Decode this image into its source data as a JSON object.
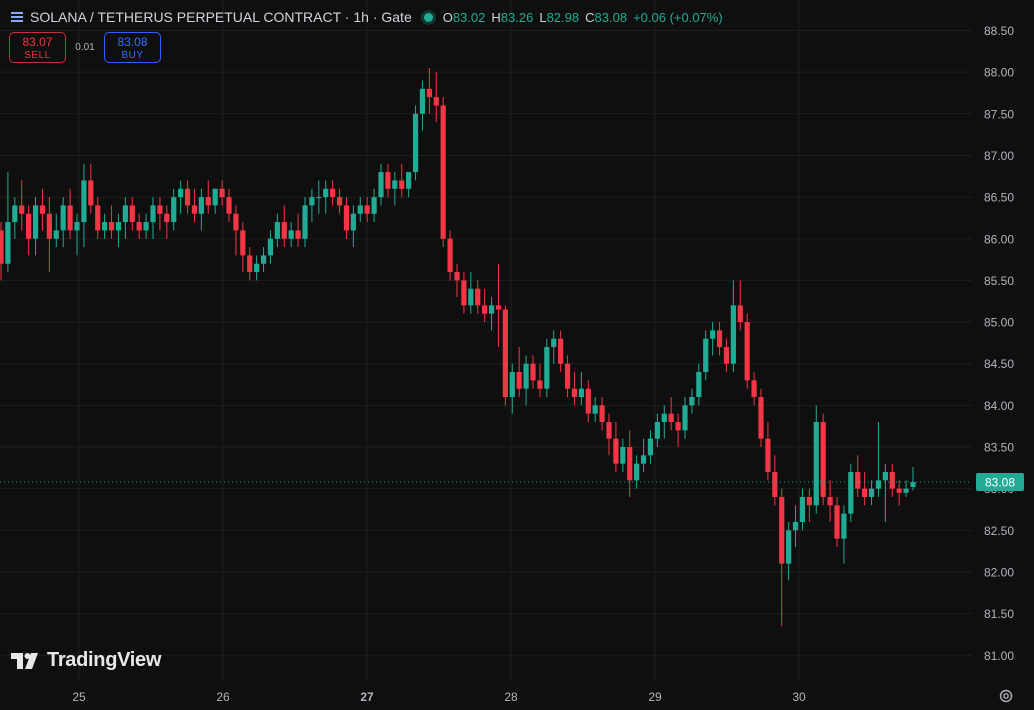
{
  "header": {
    "title": "SOLANA / TETHERUS PERPETUAL CONTRACT · 1h · Gate",
    "ohlc": [
      {
        "label": "O",
        "value": "83.02"
      },
      {
        "label": "H",
        "value": "83.26"
      },
      {
        "label": "L",
        "value": "82.98"
      },
      {
        "label": "C",
        "value": "83.08"
      }
    ],
    "change": "+0.06 (+0.07%)"
  },
  "trade": {
    "sell_price": "83.07",
    "sell_label": "SELL",
    "spread": "0.01",
    "buy_price": "83.08",
    "buy_label": "BUY"
  },
  "logo_text": "TradingView",
  "colors": {
    "up": "#22ab94",
    "down": "#f23645",
    "background": "#0f0f0f",
    "grid": "#1f1f1f"
  },
  "icons": [
    "chart-type-icon",
    "tradingview-logo-icon",
    "settings-icon"
  ],
  "chart_data": {
    "type": "candlestick",
    "interval": "1h",
    "price_axis": {
      "ylim": [
        80.75,
        88.6
      ],
      "ticks": [
        "88.50",
        "88.00",
        "87.50",
        "87.00",
        "86.50",
        "86.00",
        "85.50",
        "85.00",
        "84.50",
        "84.00",
        "83.50",
        "83.00",
        "82.50",
        "82.00",
        "81.50",
        "81.00"
      ],
      "last_price": "83.08"
    },
    "time_axis": {
      "ticks": [
        "25",
        "26",
        "27",
        "28",
        "29",
        "30"
      ],
      "bold": "27"
    },
    "grid": true,
    "candles": [
      [
        86.1,
        86.2,
        85.5,
        85.7
      ],
      [
        85.7,
        86.8,
        85.6,
        86.2
      ],
      [
        86.2,
        86.5,
        86.0,
        86.4
      ],
      [
        86.4,
        86.7,
        86.1,
        86.3
      ],
      [
        86.3,
        86.4,
        85.8,
        86.0
      ],
      [
        86.0,
        86.5,
        85.8,
        86.4
      ],
      [
        86.4,
        86.6,
        86.1,
        86.3
      ],
      [
        86.3,
        86.5,
        85.6,
        86.0
      ],
      [
        86.0,
        86.3,
        85.9,
        86.1
      ],
      [
        86.1,
        86.5,
        85.9,
        86.4
      ],
      [
        86.4,
        86.6,
        86.0,
        86.1
      ],
      [
        86.1,
        86.3,
        85.8,
        86.2
      ],
      [
        86.2,
        86.9,
        85.9,
        86.7
      ],
      [
        86.7,
        86.9,
        86.3,
        86.4
      ],
      [
        86.4,
        86.5,
        86.0,
        86.1
      ],
      [
        86.1,
        86.3,
        86.0,
        86.2
      ],
      [
        86.2,
        86.4,
        86.0,
        86.1
      ],
      [
        86.1,
        86.3,
        85.9,
        86.2
      ],
      [
        86.2,
        86.5,
        86.0,
        86.4
      ],
      [
        86.4,
        86.5,
        86.1,
        86.2
      ],
      [
        86.2,
        86.3,
        86.0,
        86.1
      ],
      [
        86.1,
        86.3,
        86.0,
        86.2
      ],
      [
        86.2,
        86.5,
        86.0,
        86.4
      ],
      [
        86.4,
        86.5,
        86.1,
        86.3
      ],
      [
        86.3,
        86.4,
        86.0,
        86.2
      ],
      [
        86.2,
        86.6,
        86.1,
        86.5
      ],
      [
        86.5,
        86.7,
        86.3,
        86.6
      ],
      [
        86.6,
        86.7,
        86.3,
        86.4
      ],
      [
        86.4,
        86.6,
        86.2,
        86.3
      ],
      [
        86.3,
        86.6,
        86.1,
        86.5
      ],
      [
        86.5,
        86.7,
        86.3,
        86.4
      ],
      [
        86.4,
        86.6,
        86.3,
        86.6
      ],
      [
        86.6,
        86.7,
        86.4,
        86.5
      ],
      [
        86.5,
        86.6,
        86.2,
        86.3
      ],
      [
        86.3,
        86.4,
        85.8,
        86.1
      ],
      [
        86.1,
        86.2,
        85.6,
        85.8
      ],
      [
        85.8,
        85.9,
        85.5,
        85.6
      ],
      [
        85.6,
        85.8,
        85.5,
        85.7
      ],
      [
        85.7,
        85.9,
        85.6,
        85.8
      ],
      [
        85.8,
        86.1,
        85.7,
        86.0
      ],
      [
        86.0,
        86.3,
        85.9,
        86.2
      ],
      [
        86.2,
        86.4,
        85.9,
        86.0
      ],
      [
        86.0,
        86.2,
        85.9,
        86.1
      ],
      [
        86.1,
        86.3,
        85.9,
        86.0
      ],
      [
        86.0,
        86.5,
        85.9,
        86.4
      ],
      [
        86.4,
        86.6,
        86.2,
        86.5
      ],
      [
        86.5,
        86.7,
        86.3,
        86.5
      ],
      [
        86.5,
        86.7,
        86.3,
        86.6
      ],
      [
        86.6,
        86.7,
        86.4,
        86.5
      ],
      [
        86.5,
        86.6,
        86.3,
        86.4
      ],
      [
        86.4,
        86.5,
        86.0,
        86.1
      ],
      [
        86.1,
        86.4,
        85.9,
        86.3
      ],
      [
        86.3,
        86.5,
        86.2,
        86.4
      ],
      [
        86.4,
        86.5,
        86.2,
        86.3
      ],
      [
        86.3,
        86.6,
        86.2,
        86.5
      ],
      [
        86.5,
        86.9,
        86.4,
        86.8
      ],
      [
        86.8,
        86.9,
        86.5,
        86.6
      ],
      [
        86.6,
        86.8,
        86.4,
        86.7
      ],
      [
        86.7,
        86.9,
        86.5,
        86.6
      ],
      [
        86.6,
        86.8,
        86.5,
        86.8
      ],
      [
        86.8,
        87.6,
        86.7,
        87.5
      ],
      [
        87.5,
        87.9,
        87.3,
        87.8
      ],
      [
        87.8,
        88.05,
        87.5,
        87.7
      ],
      [
        87.7,
        88.0,
        87.4,
        87.6
      ],
      [
        87.6,
        87.7,
        85.9,
        86.0
      ],
      [
        86.0,
        86.1,
        85.5,
        85.6
      ],
      [
        85.6,
        85.7,
        85.3,
        85.5
      ],
      [
        85.5,
        85.6,
        85.1,
        85.2
      ],
      [
        85.2,
        85.6,
        85.1,
        85.4
      ],
      [
        85.4,
        85.5,
        85.1,
        85.2
      ],
      [
        85.2,
        85.4,
        85.0,
        85.1
      ],
      [
        85.1,
        85.3,
        84.9,
        85.2
      ],
      [
        85.2,
        85.7,
        84.7,
        85.15
      ],
      [
        85.15,
        85.2,
        84.0,
        84.1
      ],
      [
        84.1,
        84.5,
        83.9,
        84.4
      ],
      [
        84.4,
        84.7,
        84.1,
        84.2
      ],
      [
        84.2,
        84.6,
        84.0,
        84.5
      ],
      [
        84.5,
        84.6,
        84.2,
        84.3
      ],
      [
        84.3,
        84.5,
        84.1,
        84.2
      ],
      [
        84.2,
        84.8,
        84.1,
        84.7
      ],
      [
        84.7,
        84.9,
        84.5,
        84.8
      ],
      [
        84.8,
        84.9,
        84.4,
        84.5
      ],
      [
        84.5,
        84.6,
        84.1,
        84.2
      ],
      [
        84.2,
        84.4,
        84.0,
        84.1
      ],
      [
        84.1,
        84.4,
        84.0,
        84.2
      ],
      [
        84.2,
        84.3,
        83.8,
        83.9
      ],
      [
        83.9,
        84.1,
        83.8,
        84.0
      ],
      [
        84.0,
        84.1,
        83.7,
        83.8
      ],
      [
        83.8,
        83.9,
        83.4,
        83.6
      ],
      [
        83.6,
        83.8,
        83.2,
        83.3
      ],
      [
        83.3,
        83.6,
        83.2,
        83.5
      ],
      [
        83.5,
        83.7,
        82.9,
        83.1
      ],
      [
        83.1,
        83.4,
        83.0,
        83.3
      ],
      [
        83.3,
        83.6,
        83.2,
        83.4
      ],
      [
        83.4,
        83.7,
        83.3,
        83.6
      ],
      [
        83.6,
        83.9,
        83.5,
        83.8
      ],
      [
        83.8,
        84.0,
        83.6,
        83.9
      ],
      [
        83.9,
        84.1,
        83.7,
        83.8
      ],
      [
        83.8,
        83.9,
        83.5,
        83.7
      ],
      [
        83.7,
        84.1,
        83.6,
        84.0
      ],
      [
        84.0,
        84.2,
        83.9,
        84.1
      ],
      [
        84.1,
        84.5,
        84.0,
        84.4
      ],
      [
        84.4,
        84.9,
        84.3,
        84.8
      ],
      [
        84.8,
        85.0,
        84.6,
        84.9
      ],
      [
        84.9,
        85.0,
        84.6,
        84.7
      ],
      [
        84.7,
        84.8,
        84.4,
        84.5
      ],
      [
        84.5,
        85.5,
        84.4,
        85.2
      ],
      [
        85.2,
        85.5,
        84.9,
        85.0
      ],
      [
        85.0,
        85.1,
        84.2,
        84.3
      ],
      [
        84.3,
        84.4,
        84.0,
        84.1
      ],
      [
        84.1,
        84.2,
        83.5,
        83.6
      ],
      [
        83.6,
        83.8,
        83.1,
        83.2
      ],
      [
        83.2,
        83.4,
        82.8,
        82.9
      ],
      [
        82.9,
        83.0,
        81.35,
        82.1
      ],
      [
        82.1,
        82.6,
        81.9,
        82.5
      ],
      [
        82.5,
        82.8,
        82.3,
        82.6
      ],
      [
        82.6,
        83.0,
        82.5,
        82.9
      ],
      [
        82.9,
        83.0,
        82.6,
        82.8
      ],
      [
        82.8,
        84.0,
        82.7,
        83.8
      ],
      [
        83.8,
        83.9,
        82.8,
        82.9
      ],
      [
        82.9,
        83.1,
        82.6,
        82.8
      ],
      [
        82.8,
        82.9,
        82.3,
        82.4
      ],
      [
        82.4,
        82.8,
        82.1,
        82.7
      ],
      [
        82.7,
        83.3,
        82.6,
        83.2
      ],
      [
        83.2,
        83.4,
        82.9,
        83.0
      ],
      [
        83.0,
        83.2,
        82.8,
        82.9
      ],
      [
        82.9,
        83.1,
        82.8,
        83.0
      ],
      [
        83.0,
        83.8,
        82.9,
        83.1
      ],
      [
        83.1,
        83.3,
        82.6,
        83.2
      ],
      [
        83.2,
        83.3,
        82.9,
        83.0
      ],
      [
        83.0,
        83.1,
        82.8,
        82.95
      ],
      [
        82.95,
        83.1,
        82.9,
        83.0
      ],
      [
        83.02,
        83.26,
        82.98,
        83.08
      ]
    ]
  }
}
